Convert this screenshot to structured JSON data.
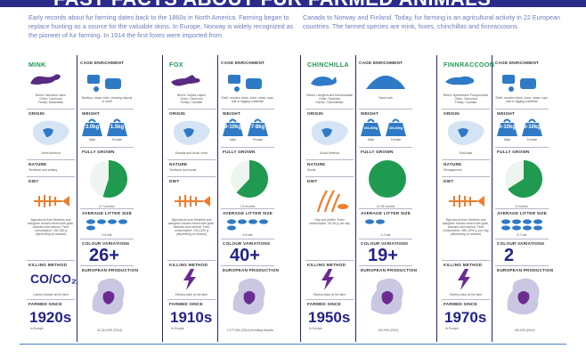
{
  "header": {
    "title": "FAST FACTS ABOUT FUR FARMED ANIMALS"
  },
  "intro": {
    "left": "Early records about fur farming dates back to the 1860s in North America. Farming began to replace hunting as a source for the valuable skins. In Europe, Norway is widely recognized as the pioneer of fur farming. In 1914 the first foxes were imported from",
    "right": "Canada to Norway and Finland. Today, fur farming is an agricultural activity in 22 European countries. The farmed species are mink, foxes, chinchillas and finnraccoons."
  },
  "labels": {
    "cage": "CAGE ENRICHMENT",
    "origin": "ORIGIN",
    "weight": "WEIGHT",
    "grown": "FULLY GROWN",
    "nature": "NATURE",
    "diet": "DIET",
    "litter": "AVERAGE LITTER SIZE",
    "colour": "COLOUR VARIATIONS",
    "killing": "KILLING METHOD",
    "production": "EUROPEAN PRODUCTION",
    "farmed": "FARMED SINCE"
  },
  "colors": {
    "navy": "#23238a",
    "green": "#1f9a50",
    "orange": "#ee7d2f",
    "blue": "#2f7ac6",
    "purple": "#6a2c91"
  },
  "animals": [
    {
      "name": "MINK",
      "breed": "Breed: Neovison vison\nOrder: Carnivora\nFamily: Mustelidae",
      "cage_text": "Nestbox, straw, tube, chewing objects or shelf",
      "origin_region": "North America",
      "weights": [
        {
          "value": "3.0kg",
          "label": "Male"
        },
        {
          "value": "1.5kg",
          "label": "Female"
        }
      ],
      "grown": "6-7 months",
      "grown_fraction": 0.55,
      "nature": "Territorial and solitary",
      "diet": "Byproducts from fisheries and slaughter houses mixed with grain, vitamins and mineral. Feed consumption: 180-380 g (depending on season)",
      "litter": "5-6 kits",
      "litter_count": 5,
      "colour_variations": "26+",
      "killing": "CO/CO₂",
      "killing_text": "Carbon dioxide at the farm",
      "production": "41,214,000 (2014)",
      "farmed_since": "1920s",
      "farmed_place": "In Europe"
    },
    {
      "name": "FOX",
      "breed": "Breed: Vulpes vulpes\nOrder: Carnivora\nFamily: Canidae",
      "cage_text": "Shelf, wooden block, bone, straw, rope, ball or digging substrate",
      "origin_region": "Eurasia and Arctic circle",
      "weights": [
        {
          "value": "9-10kg",
          "label": "Male"
        },
        {
          "value": "7-8kg",
          "label": "Female"
        }
      ],
      "grown": "7-8 months",
      "grown_fraction": 0.62,
      "nature": "Territorial and social",
      "diet": "Byproducts from fisheries and slaughter houses mixed with grain, vitamins and mineral. Feed consumption: 200-1100 g (depending on season)",
      "litter": "5-6 kits",
      "litter_count": 5,
      "colour_variations": "40+",
      "killing": "",
      "killing_text": "Electrocution at the farm",
      "production": "2,177,000 (2014) including Alpoleo",
      "farmed_since": "1910s",
      "farmed_place": "In Europe"
    },
    {
      "name": "CHINCHILLA",
      "breed": "Breed: Lanigera and brevicaudata\nOrder: Rodentia\nFamily: Chinchillidae",
      "cage_text": "Sand bath",
      "origin_region": "South America",
      "weights": [
        {
          "value": "600-800g",
          "label": "Male"
        },
        {
          "value": "400-600g",
          "label": "Female"
        }
      ],
      "grown": "12-18 months",
      "grown_fraction": 1.0,
      "nature": "Social",
      "diet": "Hay and pellets. Feed consumption: 30-35 g. per day",
      "litter": "1-2 kits",
      "litter_count": 2,
      "colour_variations": "19+",
      "killing": "",
      "killing_text": "Electrocution at the farm",
      "production": "142,000 (2014)",
      "farmed_since": "1950s",
      "farmed_place": "In Europe"
    },
    {
      "name": "FINNRACCOON",
      "breed": "Breed: Nyctereutes Procyonoides\nOrder: Carnivora\nFamily: Canidae",
      "cage_text": "Shelf, wooden block, bone, straw, rope, ball or digging substrate",
      "origin_region": "East Asia",
      "weights": [
        {
          "value": "6-10kg",
          "label": "Male"
        },
        {
          "value": "6-10kg",
          "label": "Female"
        }
      ],
      "grown": "8 months",
      "grown_fraction": 0.66,
      "nature": "Monogamous",
      "diet": "Byproducts from fisheries and slaughter houses mixed with grain, vitamins and mineral. Feed consumption: 380-1090 g. per day (depending on season)",
      "litter": "8-7 kits",
      "litter_count": 8,
      "colour_variations": "2",
      "killing": "",
      "killing_text": "Electrocution at the farm",
      "production": "140,000 (2014)",
      "farmed_since": "1970s",
      "farmed_place": "In Europe"
    }
  ]
}
